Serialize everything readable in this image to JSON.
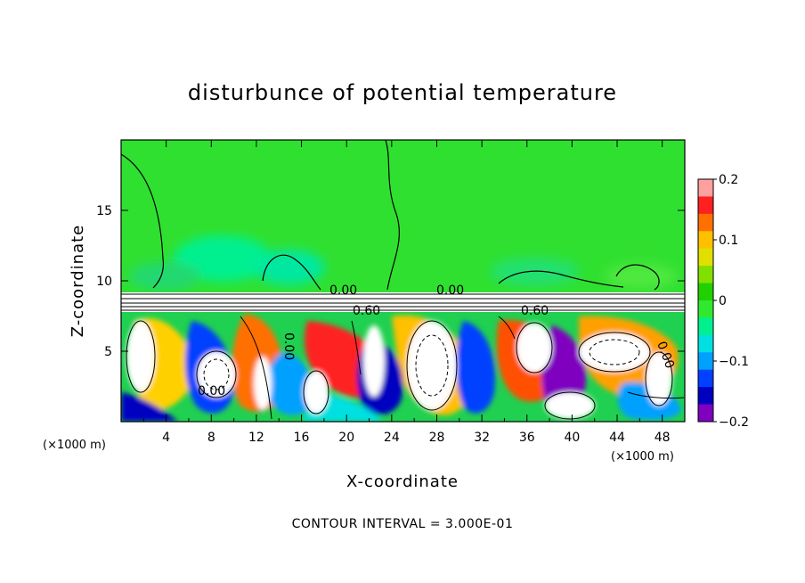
{
  "chart_data": {
    "type": "heatmap",
    "title": "disturbunce of potential temperature",
    "xlabel": "X-coordinate",
    "ylabel": "Z-coordinate",
    "x_unit_label": "(×1000 m)",
    "x_unit_label_right": "(×1000 m)",
    "x_ticks": [
      "4",
      "8",
      "12",
      "16",
      "20",
      "24",
      "28",
      "32",
      "36",
      "40",
      "44",
      "48"
    ],
    "y_ticks": [
      "5",
      "10",
      "15"
    ],
    "xlim": [
      0,
      50
    ],
    "ylim": [
      0,
      20
    ],
    "colorbar": {
      "ticks": [
        "0.2",
        "0.1",
        "0",
        "−0.1",
        "−0.2"
      ],
      "range": [
        -0.2,
        0.2
      ],
      "colors": [
        "#ffa0a0",
        "#ff2020",
        "#ff7000",
        "#ffc000",
        "#e0e000",
        "#80e000",
        "#20d000",
        "#30e830",
        "#00f090",
        "#00e0e0",
        "#00a0ff",
        "#0040ff",
        "#0000c0",
        "#8000c0"
      ]
    },
    "contour_labels": [
      "0.00",
      "0.60",
      "0.60",
      "0.00",
      "0.00",
      "0.00",
      "0.00"
    ],
    "contour_interval_text": "CONTOUR INTERVAL = 3.000E-01",
    "field_summary": {
      "upper_region_z": [
        9,
        20
      ],
      "upper_region_value": 0.0,
      "inversion_band_z": [
        8,
        9
      ],
      "lower_turbulent_region_z": [
        0,
        8
      ]
    }
  }
}
